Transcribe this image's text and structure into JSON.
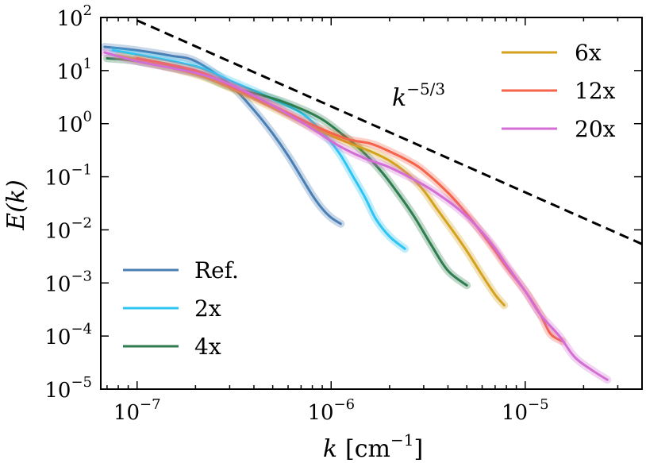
{
  "chart_data": {
    "type": "line",
    "xscale": "log",
    "yscale": "log",
    "xlim": [
      6.5e-08,
      4e-05
    ],
    "ylim": [
      1e-05,
      100
    ],
    "xlabel": {
      "base": "k",
      "unit": "[cm",
      "exp": "−1",
      "close": "]"
    },
    "ylabel": {
      "text": "E(k)"
    },
    "xticks": [
      {
        "value": 1e-07,
        "base": "10",
        "exp": "−7"
      },
      {
        "value": 1e-06,
        "base": "10",
        "exp": "−6"
      },
      {
        "value": 1e-05,
        "base": "10",
        "exp": "−5"
      }
    ],
    "yticks": [
      {
        "value": 100,
        "base": "10",
        "exp": "2"
      },
      {
        "value": 10,
        "base": "10",
        "exp": "1"
      },
      {
        "value": 1,
        "base": "10",
        "exp": "0"
      },
      {
        "value": 0.1,
        "base": "10",
        "exp": "−1"
      },
      {
        "value": 0.01,
        "base": "10",
        "exp": "−2"
      },
      {
        "value": 0.001,
        "base": "10",
        "exp": "−3"
      },
      {
        "value": 0.0001,
        "base": "10",
        "exp": "−4"
      },
      {
        "value": 1e-05,
        "base": "10",
        "exp": "−5"
      }
    ],
    "reference_line": {
      "label_base": "k",
      "label_exp": "−5/3",
      "color": "#000000",
      "points": [
        [
          1e-07,
          88
        ],
        [
          4e-05,
          0.0054
        ]
      ]
    },
    "series": [
      {
        "name": "Ref.",
        "color": "#4a7fb5",
        "x": [
          6.8e-08,
          1e-07,
          1.5e-07,
          2e-07,
          3e-07,
          4e-07,
          5e-07,
          6e-07,
          7e-07,
          8e-07,
          9e-07,
          1e-06,
          1.12e-06
        ],
        "y": [
          28,
          24,
          19,
          15,
          5.5,
          1.8,
          0.65,
          0.25,
          0.1,
          0.045,
          0.025,
          0.017,
          0.013
        ]
      },
      {
        "name": "2x",
        "color": "#2ec4f3",
        "x": [
          7.5e-08,
          1e-07,
          2e-07,
          3e-07,
          5e-07,
          7e-07,
          9e-07,
          1.1e-06,
          1.3e-06,
          1.5e-06,
          1.7e-06,
          2e-06,
          2.4e-06
        ],
        "y": [
          24,
          20,
          12,
          6.5,
          2.9,
          1.6,
          0.7,
          0.28,
          0.1,
          0.04,
          0.016,
          0.0075,
          0.0044
        ]
      },
      {
        "name": "4x",
        "color": "#2e7d4f",
        "x": [
          7e-08,
          1e-07,
          2e-07,
          3e-07,
          5e-07,
          7e-07,
          9e-07,
          1.1e-06,
          1.4e-06,
          1.8e-06,
          2.2e-06,
          2.7e-06,
          3.3e-06,
          4e-06,
          5e-06
        ],
        "y": [
          17,
          15,
          9,
          5,
          3.0,
          1.9,
          1.2,
          0.7,
          0.34,
          0.13,
          0.05,
          0.017,
          0.005,
          0.0017,
          0.0009
        ]
      },
      {
        "name": "6x",
        "color": "#d4a21e",
        "x": [
          8e-08,
          1e-07,
          2e-07,
          3e-07,
          5e-07,
          8e-07,
          1.2e-06,
          1.6e-06,
          2e-06,
          2.5e-06,
          3e-06,
          3.5e-06,
          4.2e-06,
          5e-06,
          6e-06,
          7e-06,
          7.8e-06
        ],
        "y": [
          19,
          16,
          8.5,
          4.8,
          2.0,
          0.85,
          0.45,
          0.3,
          0.2,
          0.11,
          0.055,
          0.025,
          0.01,
          0.004,
          0.0014,
          0.0006,
          0.00038
        ]
      },
      {
        "name": "12x",
        "color": "#f4634a",
        "x": [
          1e-07,
          2e-07,
          3e-07,
          5e-07,
          8e-07,
          1.2e-06,
          1.6e-06,
          2e-06,
          2.5e-06,
          3e-06,
          4e-06,
          5e-06,
          6e-06,
          7e-06,
          8e-06,
          1e-05,
          1.2e-05,
          1.35e-05,
          1.55e-05
        ],
        "y": [
          17,
          10,
          5.2,
          2.2,
          0.95,
          0.52,
          0.42,
          0.3,
          0.2,
          0.13,
          0.05,
          0.02,
          0.0085,
          0.004,
          0.002,
          0.0007,
          0.00025,
          0.00011,
          8e-05
        ]
      },
      {
        "name": "20x",
        "color": "#d36fd4",
        "x": [
          6.8e-08,
          1e-07,
          2e-07,
          3e-07,
          5e-07,
          8e-07,
          1.1e-06,
          1.5e-06,
          2e-06,
          3e-06,
          4e-06,
          5e-06,
          6e-06,
          7e-06,
          8e-06,
          1e-05,
          1.2e-05,
          1.5e-05,
          1.8e-05,
          2.2e-05,
          2.65e-05
        ],
        "y": [
          22,
          15,
          9,
          5.5,
          2.2,
          0.8,
          0.38,
          0.22,
          0.15,
          0.07,
          0.035,
          0.018,
          0.009,
          0.0045,
          0.0022,
          0.0007,
          0.00025,
          0.0001,
          4e-05,
          2.3e-05,
          1.5e-05
        ]
      }
    ],
    "legends": [
      {
        "placement": "lower-left",
        "entries": [
          "Ref.",
          "2x",
          "4x"
        ]
      },
      {
        "placement": "upper-right",
        "entries": [
          "6x",
          "12x",
          "20x"
        ]
      }
    ]
  }
}
